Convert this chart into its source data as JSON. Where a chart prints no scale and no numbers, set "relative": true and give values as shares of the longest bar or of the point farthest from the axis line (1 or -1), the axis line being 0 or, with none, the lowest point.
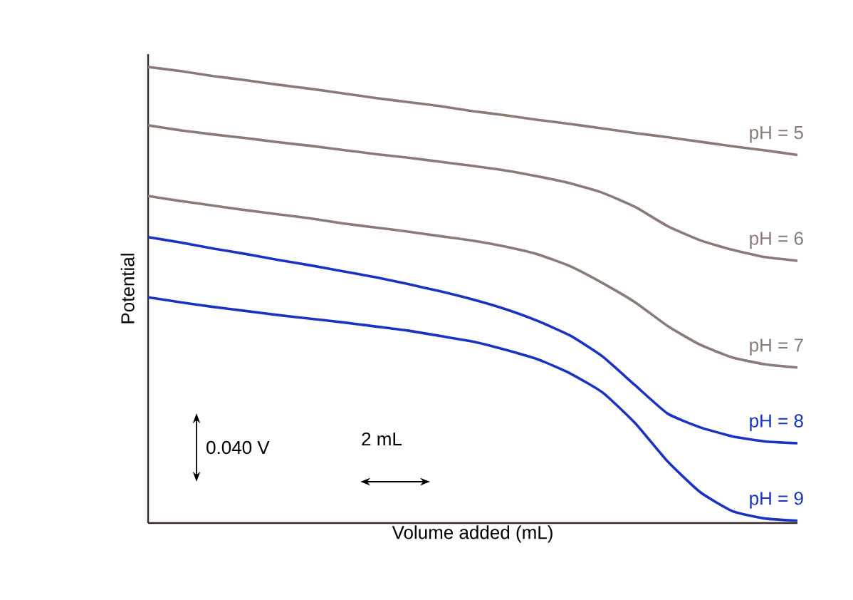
{
  "chart_data": {
    "type": "line",
    "relative": true,
    "xlabel": "Volume added (mL)",
    "ylabel": "Potential",
    "marker": "none",
    "categories": [
      null,
      null,
      null,
      null,
      null,
      null,
      null,
      null,
      null,
      null,
      null,
      null,
      null,
      null,
      null,
      null,
      null,
      null,
      null,
      null,
      null
    ],
    "series": [
      {
        "name": "pH = 5",
        "color": "#8a7a78",
        "values": [
          1.0,
          0.991,
          0.98,
          0.971,
          0.961,
          0.952,
          0.942,
          0.932,
          0.923,
          0.914,
          0.903,
          0.894,
          0.884,
          0.875,
          0.865,
          0.855,
          0.846,
          0.836,
          0.826,
          0.817,
          0.807
        ]
      },
      {
        "name": "pH = 6",
        "color": "#8a7a78",
        "values": [
          0.872,
          0.861,
          0.852,
          0.844,
          0.835,
          0.827,
          0.818,
          0.809,
          0.801,
          0.792,
          0.783,
          0.773,
          0.76,
          0.745,
          0.724,
          0.693,
          0.651,
          0.62,
          0.599,
          0.583,
          0.575
        ]
      },
      {
        "name": "pH = 7",
        "color": "#8a7a78",
        "values": [
          0.717,
          0.706,
          0.696,
          0.686,
          0.677,
          0.668,
          0.657,
          0.648,
          0.639,
          0.629,
          0.619,
          0.606,
          0.589,
          0.563,
          0.526,
          0.484,
          0.432,
          0.391,
          0.363,
          0.348,
          0.341
        ]
      },
      {
        "name": "pH = 8",
        "color": "#1a33c0",
        "values": [
          0.627,
          0.615,
          0.602,
          0.59,
          0.577,
          0.565,
          0.552,
          0.539,
          0.524,
          0.508,
          0.49,
          0.469,
          0.443,
          0.411,
          0.365,
          0.302,
          0.24,
          0.21,
          0.19,
          0.179,
          0.175
        ]
      },
      {
        "name": "pH = 9",
        "color": "#1a33c0",
        "values": [
          0.495,
          0.484,
          0.474,
          0.465,
          0.456,
          0.448,
          0.44,
          0.431,
          0.422,
          0.41,
          0.398,
          0.38,
          0.359,
          0.328,
          0.286,
          0.219,
          0.135,
          0.068,
          0.026,
          0.01,
          0.005
        ]
      }
    ],
    "annotations": [
      "0.040 V",
      "2 mL"
    ]
  }
}
